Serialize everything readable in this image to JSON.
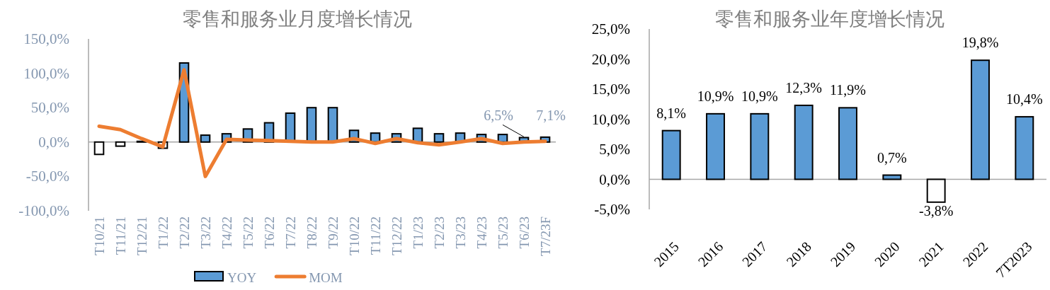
{
  "chart_data": [
    {
      "type": "bar",
      "title": "零售和服务业月度增长情况",
      "categories": [
        "T10/21",
        "T11/21",
        "T12/21",
        "T1/22",
        "T2/22",
        "T3/22",
        "T4/22",
        "T5/22",
        "T6/22",
        "T7/22",
        "T8/22",
        "T9/22",
        "T10/22",
        "T11/22",
        "T12/22",
        "T1/23",
        "T2/23",
        "T3/23",
        "T4/23",
        "T5/23",
        "T6/23",
        "T7/23F"
      ],
      "series": [
        {
          "name": "YOY",
          "type": "bar",
          "color": "#5b9bd5",
          "colors": [
            "#ffffff",
            "#ffffff",
            "#5b9bd5",
            "#ffffff",
            "#5b9bd5",
            "#5b9bd5",
            "#5b9bd5",
            "#5b9bd5",
            "#5b9bd5",
            "#5b9bd5",
            "#5b9bd5",
            "#5b9bd5",
            "#5b9bd5",
            "#5b9bd5",
            "#5b9bd5",
            "#5b9bd5",
            "#5b9bd5",
            "#5b9bd5",
            "#5b9bd5",
            "#5b9bd5",
            "#5b9bd5",
            "#5b9bd5"
          ],
          "values": [
            -18,
            -6,
            1,
            -9,
            115,
            10,
            12,
            19,
            28,
            42,
            50,
            50,
            17,
            13,
            12,
            20,
            12,
            13,
            11,
            11,
            6.5,
            7.1
          ],
          "value_labels": [
            null,
            null,
            null,
            null,
            null,
            null,
            null,
            null,
            null,
            null,
            null,
            null,
            null,
            null,
            null,
            null,
            null,
            null,
            null,
            null,
            "6,5%",
            "7,1%"
          ]
        },
        {
          "name": "MOM",
          "type": "line",
          "color": "#ed7d31",
          "values": [
            23,
            18,
            5,
            -7,
            105,
            -50,
            4,
            3,
            2,
            1,
            0,
            0,
            5,
            -2,
            5,
            -1,
            -4,
            0,
            5,
            -2,
            0,
            1
          ]
        }
      ],
      "ylim": [
        -100,
        150
      ],
      "yticks": [
        {
          "value": -100,
          "label": "-100,0%"
        },
        {
          "value": -50,
          "label": "-50,0%"
        },
        {
          "value": 0,
          "label": "0,0%"
        },
        {
          "value": 50,
          "label": "50,0%"
        },
        {
          "value": 100,
          "label": "100,0%"
        },
        {
          "value": 150,
          "label": "150,0%"
        }
      ],
      "legend": "bottom"
    },
    {
      "type": "bar",
      "title": "零售和服务业年度增长情况",
      "categories": [
        "2015",
        "2016",
        "2017",
        "2018",
        "2019",
        "2020",
        "2021",
        "2022",
        "7T2023"
      ],
      "values": [
        8.1,
        10.9,
        10.9,
        12.3,
        11.9,
        0.7,
        -3.8,
        19.8,
        10.4
      ],
      "colors": [
        "#5b9bd5",
        "#5b9bd5",
        "#5b9bd5",
        "#5b9bd5",
        "#5b9bd5",
        "#5b9bd5",
        "#ffffff",
        "#5b9bd5",
        "#5b9bd5"
      ],
      "value_labels": [
        "8,1%",
        "10,9%",
        "10,9%",
        "12,3%",
        "11,9%",
        "0,7%",
        "-3,8%",
        "19,8%",
        "10,4%"
      ],
      "ylim": [
        -5,
        25
      ],
      "yticks": [
        {
          "value": -5,
          "label": "-5,0%"
        },
        {
          "value": 0,
          "label": "0,0%"
        },
        {
          "value": 5,
          "label": "5,0%"
        },
        {
          "value": 10,
          "label": "10,0%"
        },
        {
          "value": 15,
          "label": "15,0%"
        },
        {
          "value": 20,
          "label": "20,0%"
        },
        {
          "value": 25,
          "label": "25,0%"
        }
      ]
    }
  ]
}
